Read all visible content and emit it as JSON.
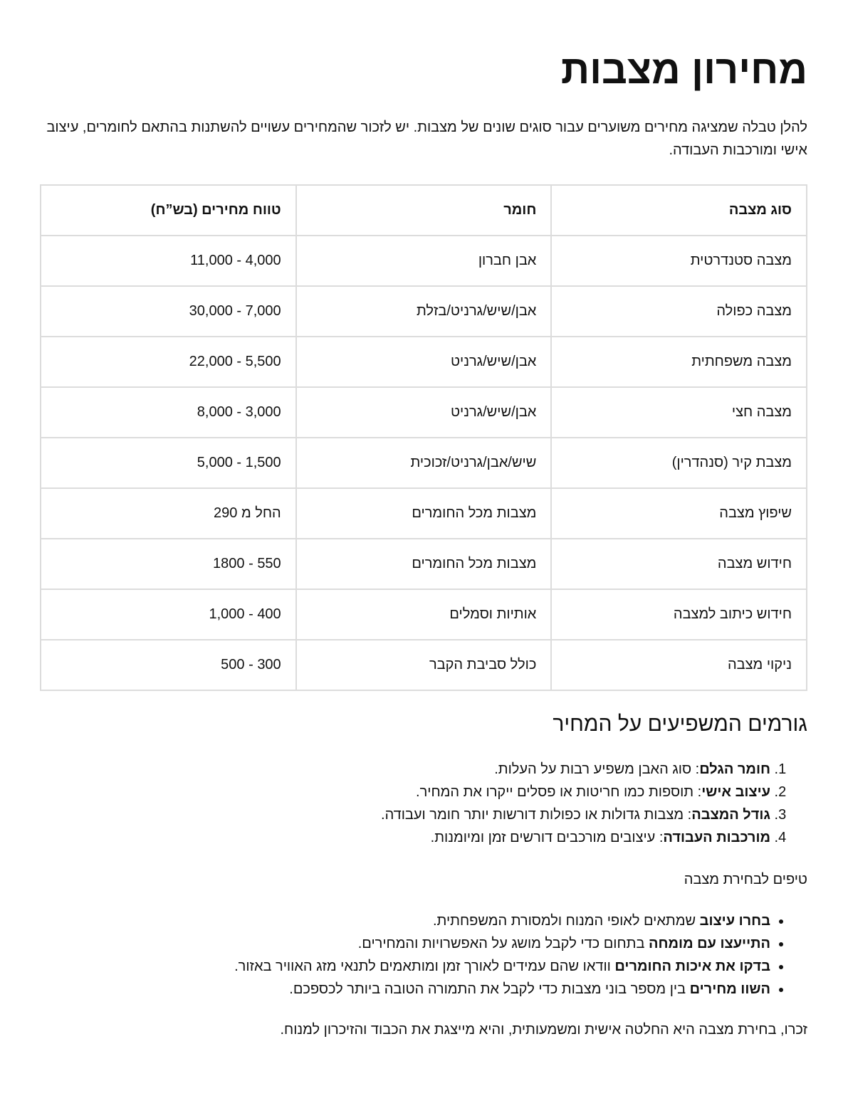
{
  "title": "מחירון מצבות",
  "intro": "להלן טבלה שמציגה מחירים משוערים עבור סוגים שונים של מצבות. יש לזכור שהמחירים עשויים להשתנות בהתאם לחומרים, עיצוב אישי ומורכבות העבודה.",
  "table": {
    "headers": [
      "סוג מצבה",
      "חומר",
      "טווח מחירים (בש”ח)"
    ],
    "rows": [
      [
        "מצבה סטנדרטית",
        "אבן חברון",
        "4,000 - 11,000"
      ],
      [
        "מצבה כפולה",
        "אבן/שיש/גרניט/בזלת",
        "7,000 - 30,000"
      ],
      [
        "מצבה משפחתית",
        "אבן/שיש/גרניט",
        "5,500 - 22,000"
      ],
      [
        "מצבה חצי",
        "אבן/שיש/גרניט",
        "3,000 - 8,000"
      ],
      [
        "מצבת קיר (סנהדרין)",
        "שיש/אבן/גרניט/זכוכית",
        "1,500 - 5,000"
      ],
      [
        "שיפוץ מצבה",
        "מצבות מכל החומרים",
        "החל מ 290"
      ],
      [
        "חידוש מצבה",
        "מצבות מכל החומרים",
        "550 - 1800"
      ],
      [
        "חידוש כיתוב למצבה",
        "אותיות וסמלים",
        "400 - 1,000"
      ],
      [
        "ניקוי מצבה",
        "כולל סביבת הקבר",
        "300 - 500"
      ]
    ]
  },
  "factors": {
    "heading": "גורמים המשפיעים על המחיר",
    "items": [
      {
        "bold": "חומר הגלם",
        "text": ": סוג האבן משפיע רבות על העלות."
      },
      {
        "bold": "עיצוב אישי",
        "text": ": תוספות כמו חריטות או פסלים ייקרו את המחיר."
      },
      {
        "bold": "גודל המצבה",
        "text": ": מצבות גדולות או כפולות דורשות יותר חומר ועבודה."
      },
      {
        "bold": "מורכבות העבודה",
        "text": ": עיצובים מורכבים דורשים זמן ומיומנות."
      }
    ]
  },
  "tips": {
    "heading": "טיפים לבחירת מצבה",
    "items": [
      {
        "bold": "בחרו עיצוב",
        "text": " שמתאים לאופי המנוח ולמסורת המשפחתית."
      },
      {
        "bold": "התייעצו עם מומחה",
        "text": " בתחום כדי לקבל מושג על האפשרויות והמחירים."
      },
      {
        "bold": "בדקו את איכות החומרים",
        "text": " וודאו שהם עמידים לאורך זמן ומותאמים לתנאי מזג האוויר באזור."
      },
      {
        "bold": "השוו מחירים",
        "text": " בין מספר בוני מצבות כדי לקבל את התמורה הטובה ביותר לכספכם."
      }
    ]
  },
  "closing": "זכרו, בחירת מצבה היא החלטה אישית ומשמעותית, והיא מייצגת את הכבוד והזיכרון למנוח."
}
